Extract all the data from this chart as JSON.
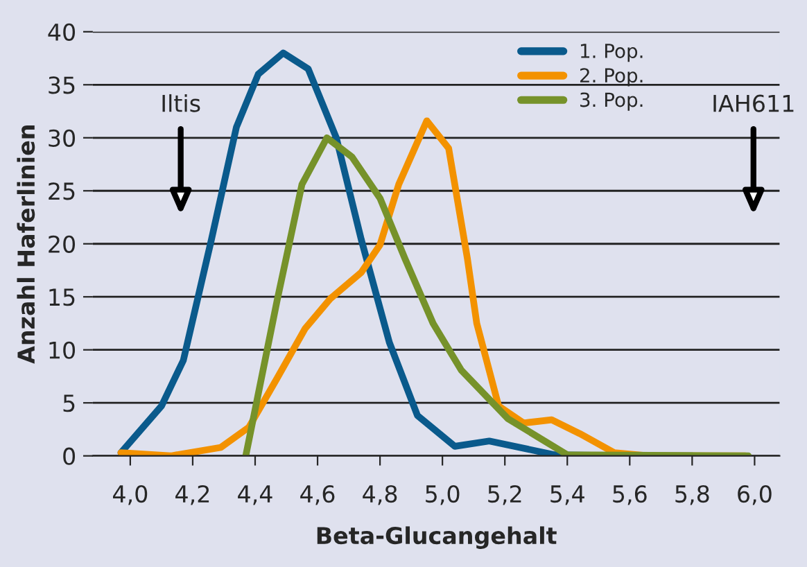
{
  "chart_data": {
    "type": "line",
    "xlabel": "Beta-Glucangehalt",
    "ylabel": "Anzahl Haferlinien",
    "series": [
      {
        "name": "1. Pop.",
        "color": "#0a5a8c",
        "x": [
          3.97,
          4.1,
          4.17,
          4.26,
          4.34,
          4.41,
          4.49,
          4.57,
          4.66,
          4.74,
          4.83,
          4.92,
          5.04,
          5.15,
          5.36,
          5.6,
          5.8
        ],
        "values": [
          0.3,
          4.7,
          9,
          20.4,
          31,
          36,
          38,
          36.5,
          30,
          20.4,
          10.7,
          3.8,
          0.9,
          1.4,
          0.1,
          0,
          0
        ]
      },
      {
        "name": "2. Pop.",
        "color": "#f39200",
        "x": [
          3.97,
          4.13,
          4.29,
          4.38,
          4.47,
          4.56,
          4.64,
          4.74,
          4.8,
          4.86,
          4.95,
          5.02,
          5.08,
          5.11,
          5.18,
          5.26,
          5.35,
          5.44,
          5.55,
          5.66,
          5.97
        ],
        "values": [
          0.3,
          0,
          0.8,
          2.7,
          7.3,
          12,
          14.8,
          17.3,
          19.9,
          25.6,
          31.6,
          29,
          18.6,
          12.5,
          4.7,
          3.1,
          3.4,
          2.1,
          0.3,
          0,
          0
        ]
      },
      {
        "name": "3. Pop.",
        "color": "#76922a",
        "x": [
          4.37,
          4.47,
          4.55,
          4.63,
          4.71,
          4.8,
          4.88,
          4.97,
          5.06,
          5.21,
          5.4,
          5.98
        ],
        "values": [
          0,
          14.6,
          25.6,
          30,
          28.2,
          24.3,
          18.6,
          12.5,
          8.1,
          3.5,
          0.1,
          0
        ]
      }
    ],
    "xlim": [
      3.88,
      6.08
    ],
    "xticks": [
      {
        "value": 4.0,
        "label": "4,0"
      },
      {
        "value": 4.2,
        "label": "4,2"
      },
      {
        "value": 4.4,
        "label": "4,4"
      },
      {
        "value": 4.6,
        "label": "4,6"
      },
      {
        "value": 4.8,
        "label": "4,8"
      },
      {
        "value": 5.0,
        "label": "5,0"
      },
      {
        "value": 5.2,
        "label": "5,2"
      },
      {
        "value": 5.4,
        "label": "5,4"
      },
      {
        "value": 5.6,
        "label": "5,6"
      },
      {
        "value": 5.8,
        "label": "5,8"
      },
      {
        "value": 6.0,
        "label": "6,0"
      }
    ],
    "ylim": [
      0,
      40
    ],
    "yticks": [
      0,
      5,
      10,
      15,
      20,
      25,
      30,
      35,
      40
    ],
    "grid": "y",
    "legend": "top right",
    "marker": "none",
    "line_style": "solid",
    "annotations": [
      "Iltis",
      "IAH611"
    ]
  }
}
